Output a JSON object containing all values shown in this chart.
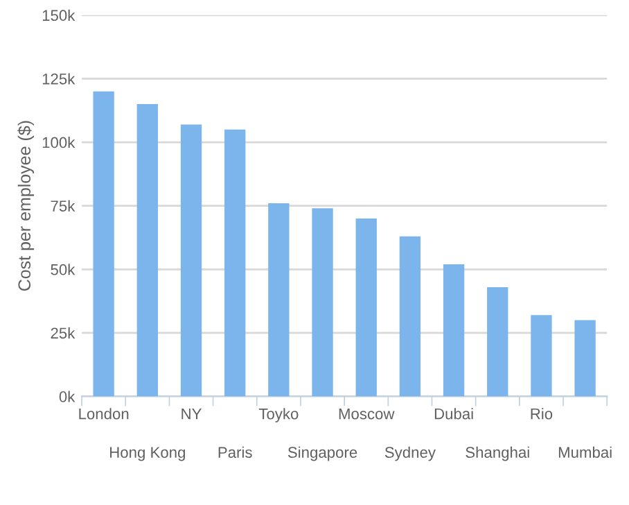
{
  "chart_data": {
    "type": "bar",
    "ylabel": "Cost per employee ($)",
    "categories": [
      "London",
      "Hong Kong",
      "NY",
      "Paris",
      "Toyko",
      "Singapore",
      "Moscow",
      "Sydney",
      "Dubai",
      "Shanghai",
      "Rio",
      "Mumbai"
    ],
    "values": [
      120,
      115,
      107,
      105,
      76,
      74,
      70,
      63,
      52,
      43,
      32,
      30
    ],
    "color": "#7cb5ec",
    "ylim": [
      0,
      150
    ],
    "yticks": [
      {
        "value": 0,
        "label": "0k"
      },
      {
        "value": 25,
        "label": "25k"
      },
      {
        "value": 50,
        "label": "50k"
      },
      {
        "value": 75,
        "label": "75k"
      },
      {
        "value": 100,
        "label": "100k"
      },
      {
        "value": 125,
        "label": "125k"
      },
      {
        "value": 150,
        "label": "150k"
      }
    ],
    "grid": "y",
    "legend": false
  }
}
